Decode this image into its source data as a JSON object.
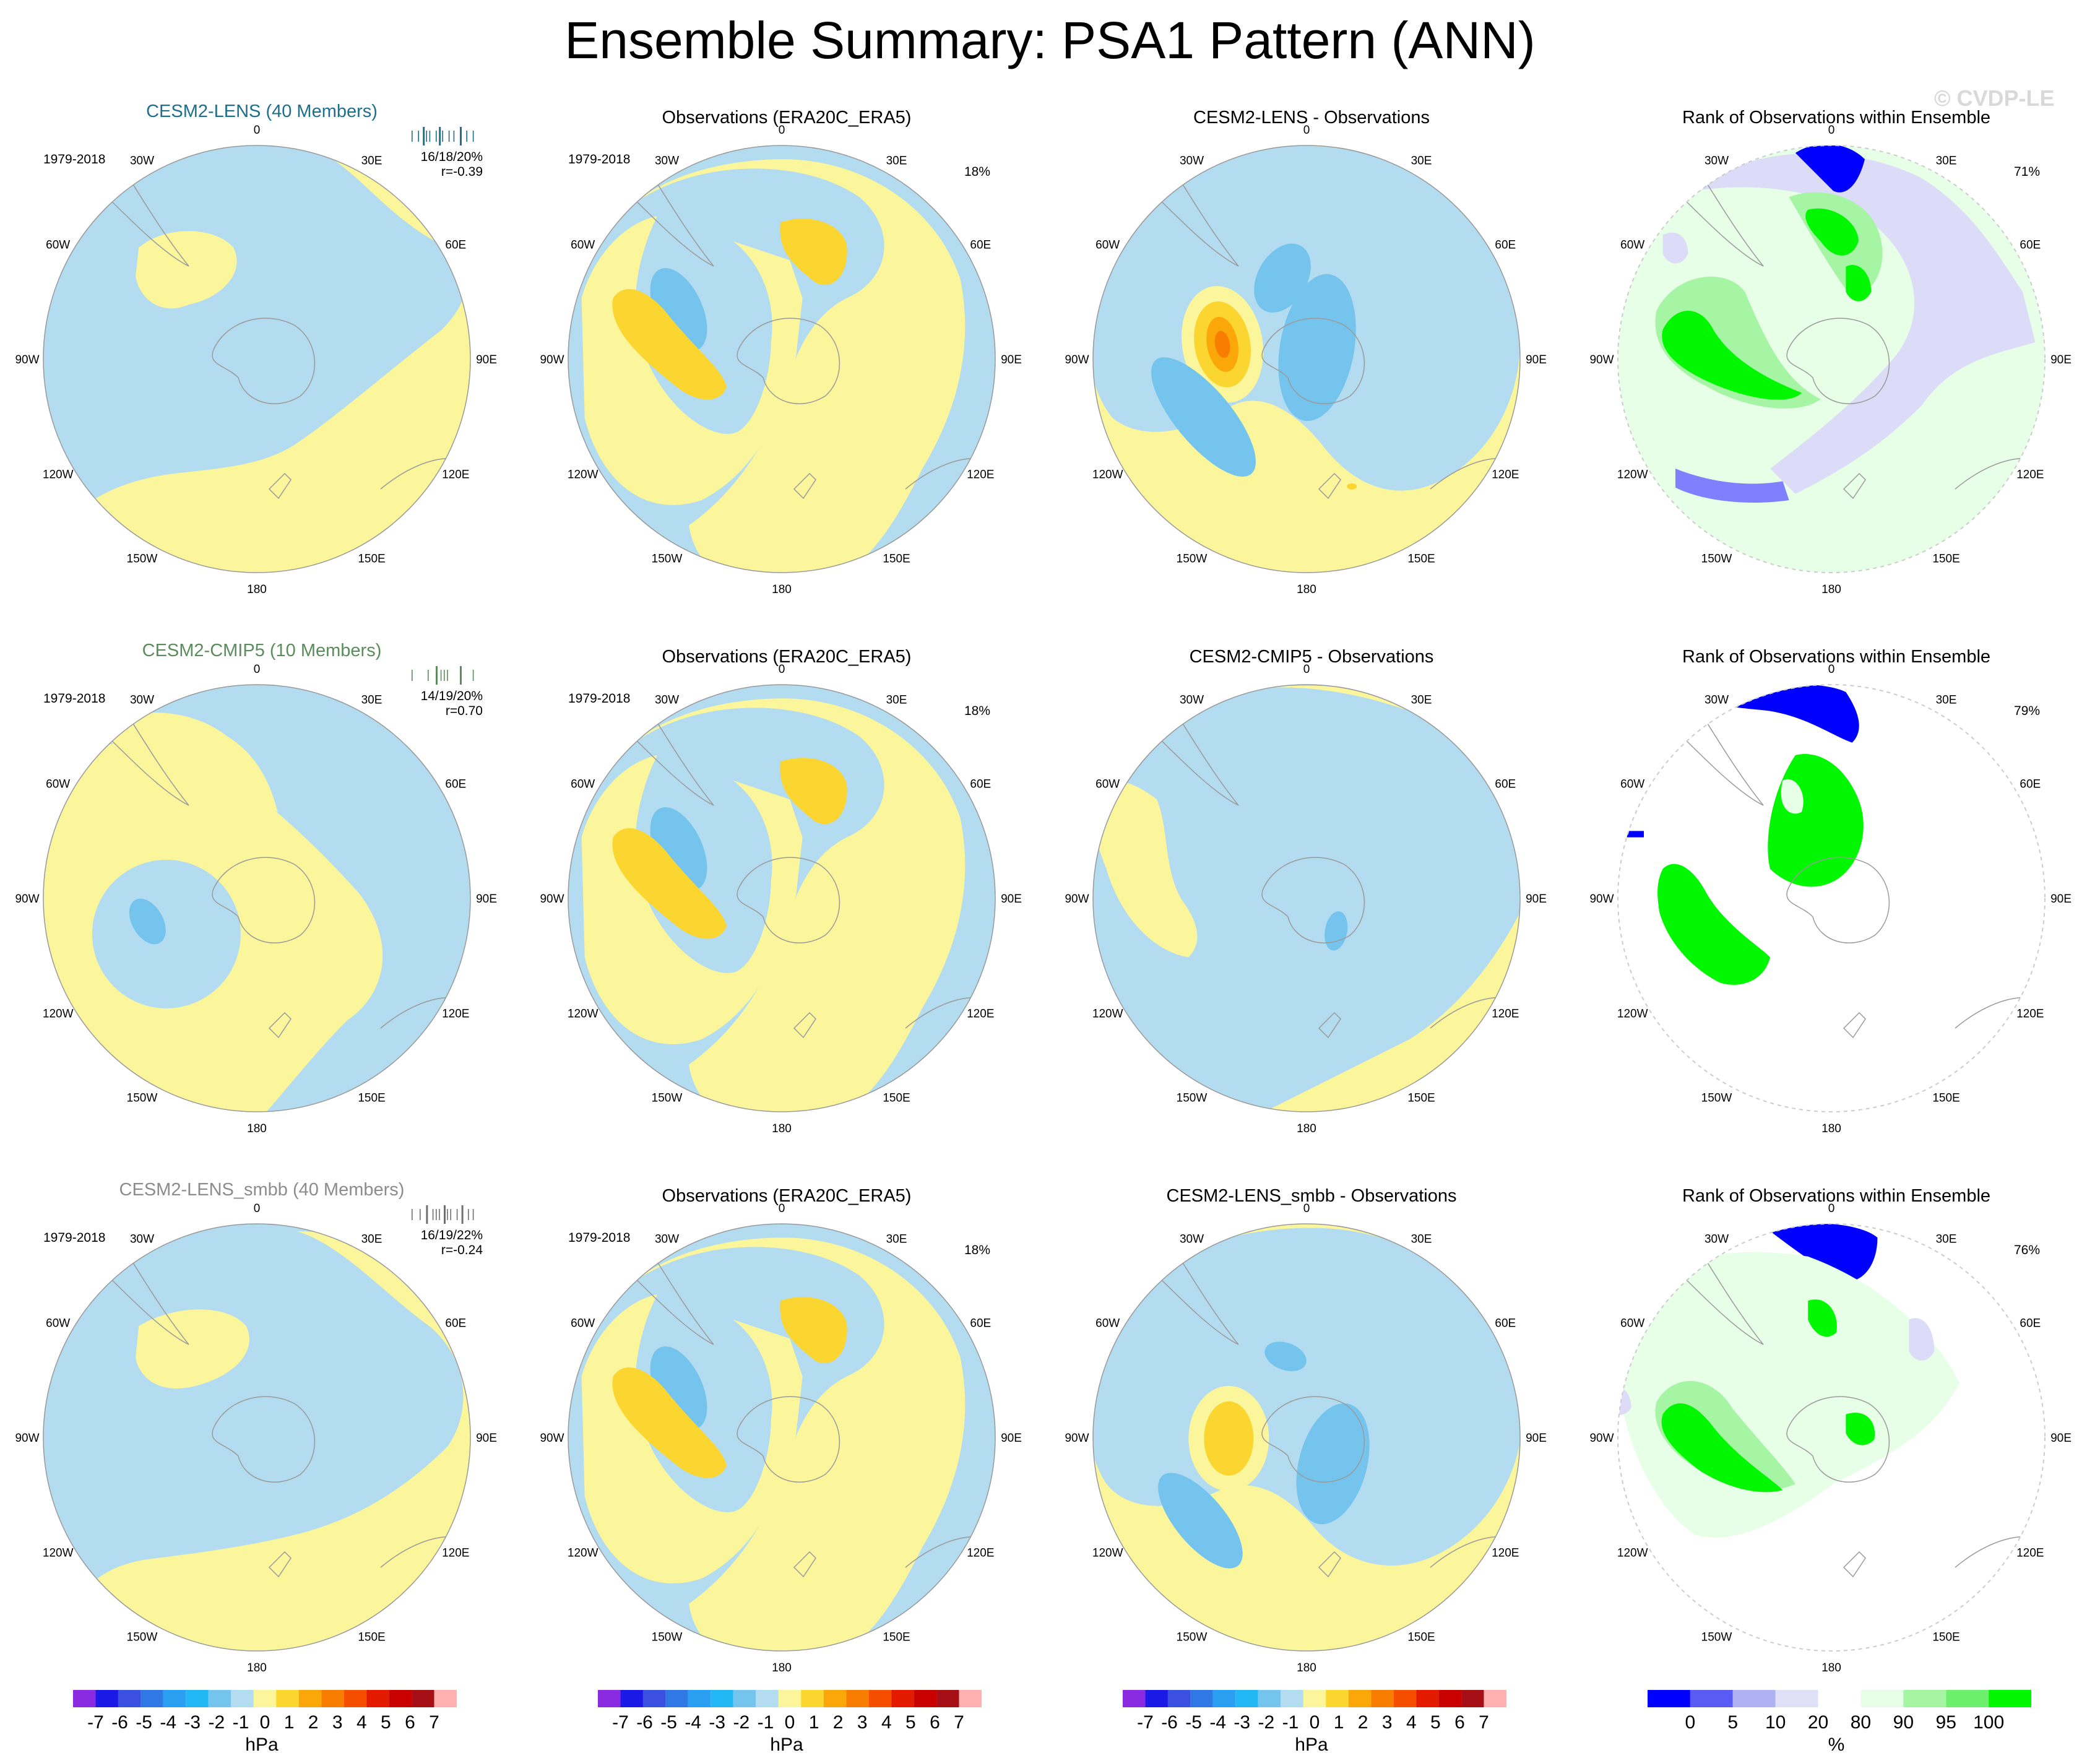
{
  "title": "Ensemble Summary: PSA1 Pattern (ANN)",
  "watermark": "© CVDP-LE",
  "lon_labels": [
    "0",
    "30E",
    "60E",
    "90E",
    "120E",
    "150E",
    "180",
    "150W",
    "120W",
    "90W",
    "60W",
    "30W"
  ],
  "colors": {
    "neg1": "#b4dcf0",
    "neg2": "#75c4ee",
    "pos1": "#fbf59c",
    "pos2": "#fcd630",
    "pos3": "#fba70a",
    "pos4": "#f87d00",
    "rank_blue": "#0000ff",
    "rank_mid_blue": "#8080ff",
    "rank_light_blue": "#dcdcf8",
    "rank_pale_green": "#e6ffe6",
    "rank_light_green": "#a5f5a5",
    "rank_green": "#00f700",
    "land": "#9a9a9a"
  },
  "rows": [
    {
      "model": {
        "title": "CESM2-LENS (40 Members)",
        "title_color": "#1d6f8c",
        "period": "1979-2018",
        "stats_line1": "16/18/20%",
        "stats_line2": "r=-0.39",
        "hist_color": "#1d6f8c"
      },
      "obs": {
        "title": "Observations (ERA20C_ERA5)",
        "period": "1979-2018",
        "pct": "18%"
      },
      "diff": {
        "title": "CESM2-LENS - Observations"
      },
      "rank": {
        "title": "Rank of Observations within Ensemble",
        "pct": "71%"
      }
    },
    {
      "model": {
        "title": "CESM2-CMIP5 (10 Members)",
        "title_color": "#5b8c5b",
        "period": "1979-2018",
        "stats_line1": "14/19/20%",
        "stats_line2": "r=0.70",
        "hist_color": "#5b8c5b"
      },
      "obs": {
        "title": "Observations (ERA20C_ERA5)",
        "period": "1979-2018",
        "pct": "18%"
      },
      "diff": {
        "title": "CESM2-CMIP5 - Observations"
      },
      "rank": {
        "title": "Rank of Observations within Ensemble",
        "pct": "79%"
      }
    },
    {
      "model": {
        "title": "CESM2-LENS_smbb (40 Members)",
        "title_color": "#8c8c8c",
        "period": "1979-2018",
        "stats_line1": "16/19/22%",
        "stats_line2": "r=-0.24",
        "hist_color": "#707070"
      },
      "obs": {
        "title": "Observations (ERA20C_ERA5)",
        "period": "1979-2018",
        "pct": "18%"
      },
      "diff": {
        "title": "CESM2-LENS_smbb - Observations"
      },
      "rank": {
        "title": "Rank of Observations within Ensemble",
        "pct": "76%"
      }
    }
  ],
  "colorbar_hpa": {
    "unit": "hPa",
    "labels": [
      "-7",
      "-6",
      "-5",
      "-4",
      "-3",
      "-2",
      "-1",
      "0",
      "1",
      "2",
      "3",
      "4",
      "5",
      "6",
      "7"
    ],
    "colors": [
      "#8a2be2",
      "#1a1ae6",
      "#3b4fe0",
      "#2f78e6",
      "#2b9ff2",
      "#22b8f5",
      "#75c4ee",
      "#b4dcf0",
      "#fbf59c",
      "#fcd630",
      "#fba70a",
      "#f87d00",
      "#f54e00",
      "#e41a00",
      "#c80000",
      "#a50f15",
      "#ffb0b0"
    ]
  },
  "colorbar_pct": {
    "unit": "%",
    "labels": [
      "0",
      "5",
      "10",
      "20",
      "80",
      "90",
      "95",
      "100"
    ],
    "colors": [
      "#0000ff",
      "#5a5af5",
      "#b0b0f5",
      "#e0e0f8",
      "#ffffff",
      "#e6ffe6",
      "#a5f5a5",
      "#6cf06c",
      "#00f700"
    ]
  }
}
